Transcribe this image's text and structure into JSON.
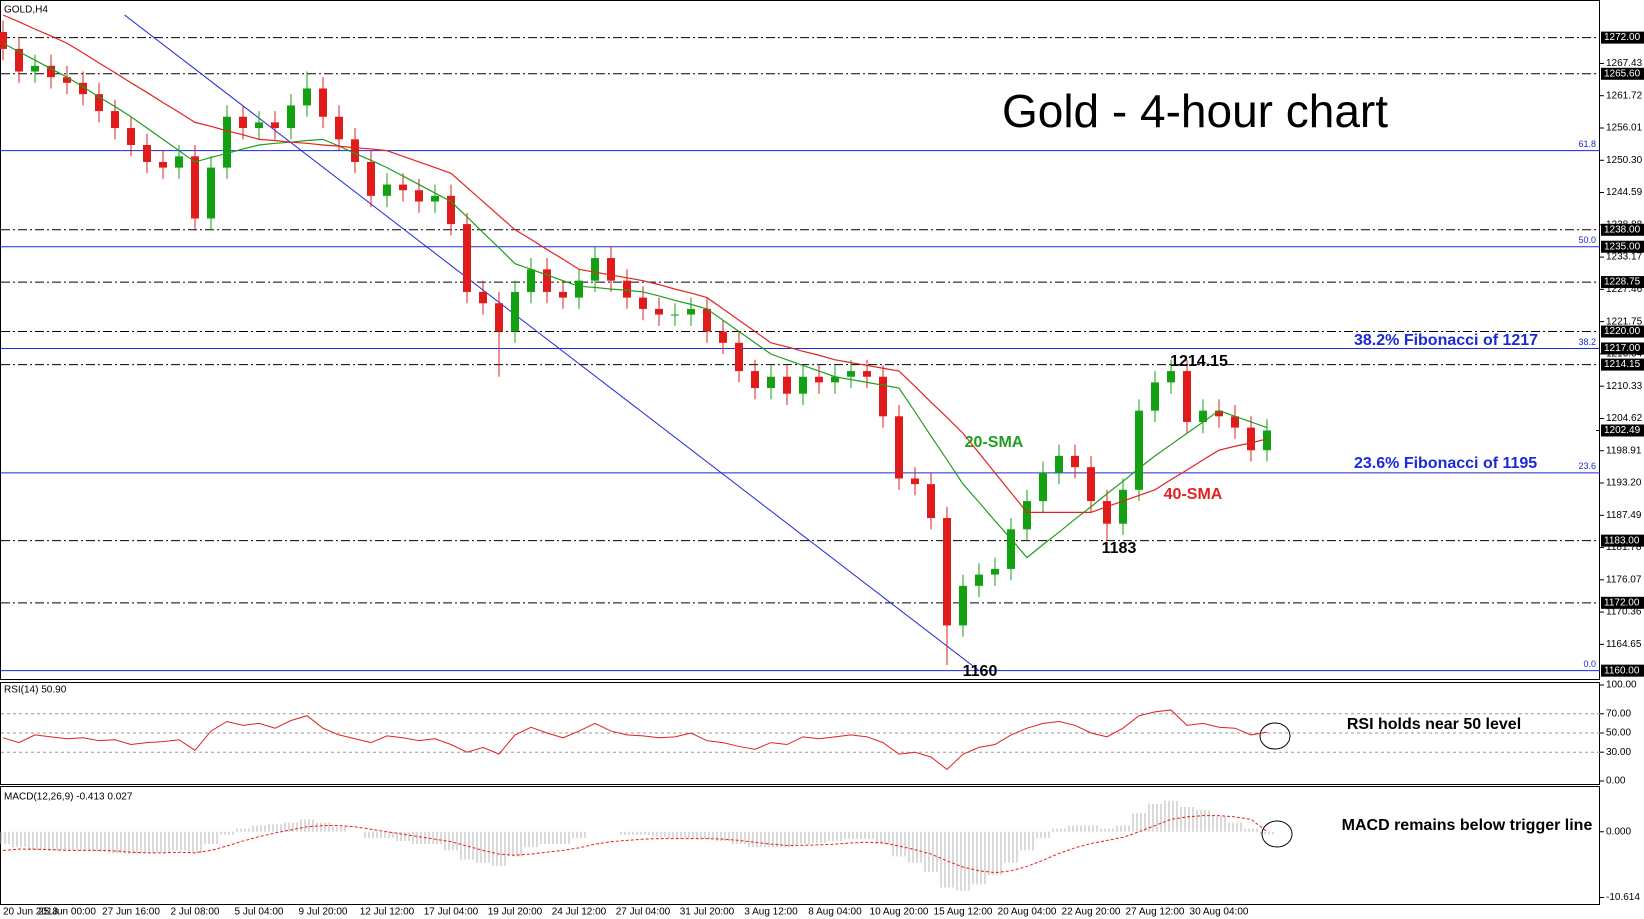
{
  "chart_data": [
    {
      "type": "candlestick",
      "title": "Gold - 4-hour chart",
      "label": "GOLD,H4",
      "categories": [
        "20 Jun 2018",
        null,
        null,
        null,
        "25 Jun 00:00",
        null,
        null,
        null,
        "27 Jun 16:00",
        null,
        null,
        null,
        "2 Jul 08:00",
        null,
        null,
        null,
        "5 Jul 04:00",
        null,
        null,
        null,
        "9 Jul 20:00",
        null,
        null,
        null,
        "12 Jul 12:00",
        null,
        null,
        null,
        "17 Jul 04:00",
        null,
        null,
        null,
        "19 Jul 20:00",
        null,
        null,
        null,
        "24 Jul 12:00",
        null,
        null,
        null,
        "27 Jul 04:00",
        null,
        null,
        null,
        "31 Jul 20:00",
        null,
        null,
        null,
        "3 Aug 12:00",
        null,
        null,
        null,
        "8 Aug 04:00",
        null,
        null,
        null,
        "10 Aug 20:00",
        null,
        null,
        null,
        "15 Aug 12:00",
        null,
        null,
        null,
        "20 Aug 04:00",
        null,
        null,
        null,
        "22 Aug 20:00",
        null,
        null,
        null,
        "27 Aug 12:00",
        null,
        null,
        null,
        "30 Aug 04:00",
        null,
        null,
        null
      ],
      "open": [
        1273,
        1270,
        1266,
        1267,
        1265,
        1264,
        1262,
        1259,
        1256,
        1253,
        1250,
        1249,
        1251,
        1240,
        1249,
        1258,
        1256,
        1257,
        1256,
        1260,
        1263,
        1258,
        1254,
        1250,
        1244,
        1246,
        1245,
        1243,
        1244,
        1239,
        1227,
        1225,
        1220,
        1227,
        1231,
        1227,
        1226,
        1229,
        1233,
        1229,
        1226,
        1224,
        1223,
        1223,
        1224,
        1220,
        1218,
        1213,
        1210,
        1212,
        1209,
        1212,
        1211,
        1212,
        1213,
        1212,
        1205,
        1194,
        1193,
        1187,
        1168,
        1175,
        1177,
        1178,
        1185,
        1190,
        1195,
        1198,
        1196,
        1190,
        1186,
        1192,
        1206,
        1211,
        1213,
        1204,
        1206,
        1205,
        1203,
        1199
      ],
      "high": [
        1275,
        1272,
        1269,
        1269,
        1267,
        1266,
        1264,
        1261,
        1258,
        1255,
        1252,
        1253,
        1253,
        1251,
        1260,
        1260,
        1259,
        1259,
        1262,
        1266,
        1265,
        1260,
        1256,
        1252,
        1248,
        1248,
        1247,
        1246,
        1246,
        1241,
        1229,
        1227,
        1229,
        1233,
        1233,
        1229,
        1231,
        1235,
        1235,
        1231,
        1228,
        1226,
        1225,
        1226,
        1226,
        1222,
        1220,
        1215,
        1214,
        1214,
        1214,
        1214,
        1214,
        1215,
        1215,
        1214,
        1207,
        1196,
        1195,
        1189,
        1177,
        1179,
        1180,
        1187,
        1192,
        1197,
        1200,
        1200,
        1198,
        1192,
        1194,
        1208,
        1213,
        1215,
        1215,
        1208,
        1208,
        1207,
        1205,
        1204.5
      ],
      "low": [
        1268,
        1264,
        1264,
        1263,
        1262,
        1260,
        1257,
        1254,
        1251,
        1248,
        1247,
        1247,
        1238,
        1238,
        1247,
        1254,
        1254,
        1254,
        1254,
        1258,
        1256,
        1252,
        1248,
        1242,
        1242,
        1243,
        1241,
        1241,
        1237,
        1225,
        1223,
        1212,
        1218,
        1225,
        1225,
        1224,
        1224,
        1227,
        1227,
        1224,
        1222,
        1221,
        1221,
        1221,
        1218,
        1216,
        1211,
        1208,
        1208,
        1207,
        1207,
        1209,
        1209,
        1210,
        1210,
        1203,
        1192,
        1191,
        1185,
        1161,
        1166,
        1173,
        1175,
        1176,
        1183,
        1188,
        1193,
        1194,
        1188,
        1183,
        1184,
        1190,
        1204,
        1209,
        1202,
        1202,
        1203,
        1201,
        1197,
        1197
      ],
      "close": [
        1270,
        1266,
        1267,
        1265,
        1264,
        1262,
        1259,
        1256,
        1253,
        1250,
        1249,
        1251,
        1240,
        1249,
        1258,
        1256,
        1257,
        1256,
        1260,
        1263,
        1258,
        1254,
        1250,
        1244,
        1246,
        1245,
        1243,
        1244,
        1239,
        1227,
        1225,
        1220,
        1227,
        1231,
        1227,
        1226,
        1229,
        1233,
        1229,
        1226,
        1224,
        1223,
        1223,
        1224,
        1220,
        1218,
        1213,
        1210,
        1212,
        1209,
        1212,
        1211,
        1212,
        1213,
        1212,
        1205,
        1194,
        1193,
        1187,
        1168,
        1175,
        1177,
        1178,
        1185,
        1190,
        1195,
        1198,
        1196,
        1190,
        1186,
        1192,
        1206,
        1211,
        1213,
        1204,
        1206,
        1205,
        1203,
        1199,
        1202.5
      ],
      "up_color": "#13a013",
      "down_color": "#e01b1b",
      "series": [
        {
          "name": "20-SMA",
          "color": "#1f9e1f",
          "values": [
            1271,
            1269.5,
            1268,
            1266.5,
            1265,
            1263.3,
            1261.5,
            1259.8,
            1258,
            1256,
            1254,
            1252,
            1250,
            1250.8,
            1251.5,
            1252.3,
            1253,
            1253.3,
            1253.5,
            1253.8,
            1254,
            1252.8,
            1251.5,
            1250.3,
            1249,
            1247.5,
            1246,
            1244.5,
            1243,
            1240.3,
            1237.5,
            1234.8,
            1232,
            1231,
            1230,
            1229,
            1228,
            1227.8,
            1227.5,
            1227.3,
            1227,
            1226.3,
            1225.5,
            1224.8,
            1224,
            1222,
            1220,
            1218,
            1216,
            1215,
            1214,
            1213,
            1212,
            1211.5,
            1211,
            1210.5,
            1210,
            1205.8,
            1201.5,
            1197.3,
            1193,
            1189.8,
            1186.5,
            1183.3,
            1180,
            1182.3,
            1184.5,
            1186.8,
            1189,
            1191.3,
            1193.5,
            1195.8,
            1198,
            1200,
            1202,
            1204,
            1206,
            1205,
            1204,
            1203
          ]
        },
        {
          "name": "40-SMA",
          "color": "#e52222",
          "values": [
            1276,
            1274.8,
            1273.5,
            1272.3,
            1271,
            1269.3,
            1267.5,
            1265.8,
            1264,
            1262.3,
            1260.5,
            1258.8,
            1257,
            1256.3,
            1255.5,
            1254.8,
            1254,
            1253.8,
            1253.5,
            1253.3,
            1253,
            1252.8,
            1252.5,
            1252.3,
            1252,
            1251,
            1250,
            1249,
            1248,
            1245.5,
            1243,
            1240.5,
            1238,
            1236.3,
            1234.5,
            1232.8,
            1231,
            1230.5,
            1230,
            1229.5,
            1229,
            1228.3,
            1227.5,
            1226.8,
            1226,
            1224,
            1222,
            1220,
            1218,
            1217.3,
            1216.5,
            1215.8,
            1215,
            1214.5,
            1214,
            1213.5,
            1213,
            1210.3,
            1207.5,
            1204.8,
            1202,
            1198.5,
            1195,
            1191.5,
            1188,
            1188,
            1188,
            1188,
            1188,
            1189,
            1190,
            1191,
            1192,
            1193.8,
            1195.5,
            1197.3,
            1199,
            1199.7,
            1200.3,
            1201
          ]
        }
      ],
      "levels": [
        {
          "value": 1272,
          "label": "1272.00"
        },
        {
          "value": 1265.6,
          "label": "1265.60"
        },
        {
          "value": 1238,
          "label": "1238.00"
        },
        {
          "value": 1228.75,
          "label": "1228.75"
        },
        {
          "value": 1220,
          "label": "1220.00"
        },
        {
          "value": 1214.15,
          "label": "1214.15"
        },
        {
          "value": 1183,
          "label": "1183.00"
        },
        {
          "value": 1172,
          "label": "1172.00"
        }
      ],
      "fib_levels": [
        {
          "value": 1252,
          "ratio": "61.8"
        },
        {
          "value": 1235,
          "ratio": "50.0",
          "label": "1235.00"
        },
        {
          "value": 1217,
          "ratio": "38.2",
          "label": "1217.00"
        },
        {
          "value": 1195,
          "ratio": "23.6"
        },
        {
          "value": 1160,
          "ratio": "0.0",
          "label": "1160.00"
        }
      ],
      "fib_color": "#1a2ad8",
      "current_price": {
        "value": 1202.49,
        "label": "1202.49"
      },
      "trendline": {
        "x": [
          7.6,
          61
        ],
        "y": [
          1276,
          1160
        ],
        "color": "#1a2ad8"
      },
      "annotations": [
        "1214.15",
        "1183",
        "1160"
      ],
      "fib_notes": [
        "38.2% Fibonacci of 1217",
        "23.6% Fibonacci of 1195"
      ],
      "ylim": [
        1158.7,
        1278.3
      ],
      "yticks": [
        {
          "value": 1267.43,
          "label": "1267.43"
        },
        {
          "value": 1261.72,
          "label": "1261.72"
        },
        {
          "value": 1256.01,
          "label": "1256.01"
        },
        {
          "value": 1250.3,
          "label": "1250.30"
        },
        {
          "value": 1244.59,
          "label": "1244.59"
        },
        {
          "value": 1238.88,
          "label": "1238.88"
        },
        {
          "value": 1233.17,
          "label": "1233.17"
        },
        {
          "value": 1227.46,
          "label": "1227.46"
        },
        {
          "value": 1221.75,
          "label": "1221.75"
        },
        {
          "value": 1216.04,
          "label": "1216.04"
        },
        {
          "value": 1210.33,
          "label": "1210.33"
        },
        {
          "value": 1204.62,
          "label": "1204.62"
        },
        {
          "value": 1198.91,
          "label": "1198.91"
        },
        {
          "value": 1193.2,
          "label": "1193.20"
        },
        {
          "value": 1187.49,
          "label": "1187.49"
        },
        {
          "value": 1181.78,
          "label": "1181.78"
        },
        {
          "value": 1176.07,
          "label": "1176.07"
        },
        {
          "value": 1170.36,
          "label": "1170.36"
        },
        {
          "value": 1164.65,
          "label": "1164.65"
        }
      ]
    },
    {
      "type": "line",
      "label": "RSI(14) 50.90",
      "note": "RSI holds near 50 level",
      "series": [
        {
          "color": "#e41f1f",
          "values": [
            45,
            40,
            48,
            46,
            44,
            45,
            42,
            43,
            38,
            40,
            41,
            43,
            32,
            52,
            62,
            58,
            60,
            55,
            63,
            68,
            55,
            48,
            44,
            40,
            47,
            45,
            42,
            44,
            38,
            30,
            35,
            28,
            48,
            56,
            50,
            45,
            52,
            60,
            52,
            48,
            47,
            45,
            46,
            50,
            42,
            40,
            36,
            33,
            40,
            38,
            46,
            44,
            46,
            48,
            46,
            40,
            28,
            30,
            25,
            12,
            28,
            35,
            38,
            48,
            55,
            60,
            62,
            58,
            50,
            46,
            55,
            68,
            72,
            74,
            58,
            60,
            56,
            55,
            48,
            50.9
          ]
        }
      ],
      "ylim": [
        0,
        100
      ],
      "yticks": [
        {
          "value": 100,
          "label": "100.00"
        },
        {
          "value": 70,
          "label": "70.00"
        },
        {
          "value": 50,
          "label": "50.00"
        },
        {
          "value": 30,
          "label": "30.00"
        },
        {
          "value": 0,
          "label": "0.00"
        }
      ]
    },
    {
      "type": "macd",
      "label": "MACD(12,26,9) -0.413 0.027",
      "note": "MACD remains below trigger line",
      "histogram": {
        "color": "#b4b4b4",
        "values": [
          -2,
          -2.5,
          -3,
          -3,
          -3,
          -3,
          -3.2,
          -3.5,
          -3.6,
          -3.5,
          -3.3,
          -3,
          -3.5,
          -2,
          -0.5,
          0.5,
          1,
          1.2,
          1.5,
          2,
          1.5,
          0.8,
          0,
          -1,
          -1,
          -1.5,
          -2,
          -2,
          -3,
          -4.5,
          -5,
          -5.5,
          -4,
          -2.5,
          -2,
          -2,
          -1,
          0,
          0,
          -0.5,
          -0.5,
          -0.8,
          -1,
          -1,
          -1.2,
          -1.5,
          -2,
          -2.5,
          -2.5,
          -2.5,
          -2,
          -1.8,
          -1.5,
          -1.2,
          -1.2,
          -2,
          -4,
          -5,
          -6.5,
          -9,
          -9.5,
          -8.5,
          -7,
          -5,
          -3,
          -1,
          0.5,
          1,
          1,
          0.5,
          1,
          3,
          4.5,
          5,
          4,
          3.5,
          2.5,
          1.5,
          0.5,
          -0.413
        ]
      },
      "signal": {
        "color": "#e41f1f",
        "values": [
          -3,
          -2.8,
          -2.8,
          -2.9,
          -3,
          -3,
          -3,
          -3.1,
          -3.3,
          -3.4,
          -3.4,
          -3.3,
          -3.4,
          -3,
          -2.3,
          -1.5,
          -0.8,
          -0.2,
          0.3,
          0.8,
          1,
          1,
          0.8,
          0.4,
          0,
          -0.4,
          -0.8,
          -1.2,
          -1.6,
          -2.3,
          -3,
          -3.6,
          -3.8,
          -3.6,
          -3.3,
          -3,
          -2.6,
          -2,
          -1.6,
          -1.4,
          -1.2,
          -1.1,
          -1.1,
          -1.1,
          -1.1,
          -1.2,
          -1.4,
          -1.7,
          -2,
          -2.2,
          -2.2,
          -2.1,
          -2,
          -1.8,
          -1.7,
          -1.8,
          -2.3,
          -2.9,
          -3.6,
          -4.7,
          -5.7,
          -6.3,
          -6.6,
          -6.3,
          -5.6,
          -4.6,
          -3.5,
          -2.6,
          -1.9,
          -1.4,
          -0.9,
          0,
          1,
          2,
          2.4,
          2.6,
          2.6,
          2.4,
          2,
          0.027
        ]
      },
      "ylim": [
        -11.5,
        6.9
      ],
      "yticks": [
        {
          "value": 0,
          "label": "0.000"
        },
        {
          "value": -10.614,
          "label": "-10.614"
        }
      ]
    }
  ]
}
